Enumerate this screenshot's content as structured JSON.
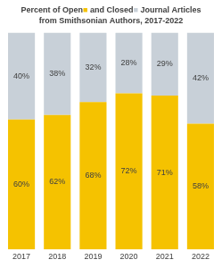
{
  "chart_data": {
    "type": "bar",
    "title": "Percent of Open■ and Closed■ Journal Articles",
    "subtitle": "from Smithsonian Authors, 2017-2022",
    "categories": [
      "2017",
      "2018",
      "2019",
      "2020",
      "2021",
      "2022"
    ],
    "series": [
      {
        "color": "#F5C200",
        "values": [
          60,
          62,
          68,
          72,
          71,
          58
        ],
        "value_labels": [
          "60%",
          "62%",
          "68%",
          "72%",
          "71%",
          "58%"
        ]
      },
      {
        "color": "#C8D0D8",
        "values": [
          40,
          38,
          32,
          28,
          29,
          42
        ],
        "value_labels": [
          "40%",
          "38%",
          "32%",
          "28%",
          "29%",
          "42%"
        ]
      }
    ],
    "stacked": true,
    "ylim": [
      0,
      100
    ],
    "grid": false,
    "data_labels": true,
    "tick_labels": "x"
  }
}
